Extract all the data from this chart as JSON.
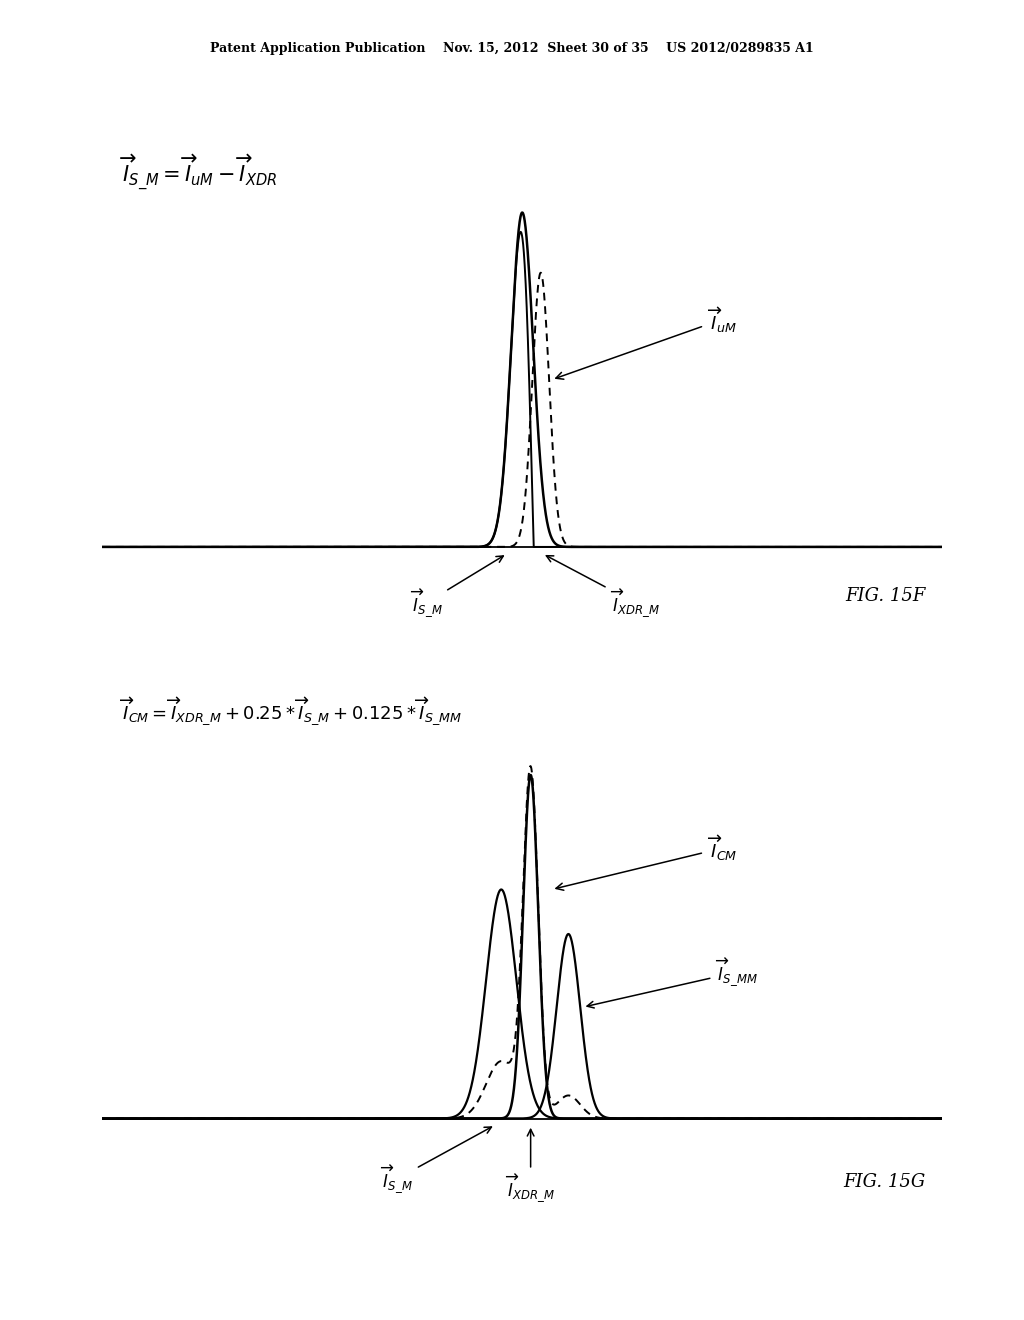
{
  "title_header": "Patent Application Publication    Nov. 15, 2012  Sheet 30 of 35    US 2012/0289835 A1",
  "fig15f_label": "FIG. 15F",
  "fig15g_label": "FIG. 15G",
  "background_color": "#ffffff"
}
